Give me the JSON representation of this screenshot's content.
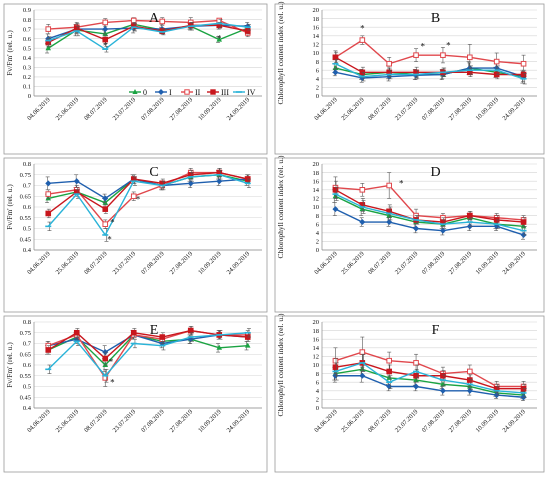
{
  "figure": {
    "bg_color": "#ffffff",
    "frame_color": "#9a9a9a",
    "grid_color": "#d4d4d4",
    "series_colors": [
      "#1aa342",
      "#1f5fae",
      "#e0474c",
      "#c8161d",
      "#29b3d8"
    ],
    "series_names": [
      "0",
      "I",
      "II",
      "III",
      "IV"
    ],
    "shared_dates": [
      "04.06.2019",
      "25.06.2019",
      "08.07.2019",
      "23.07.2019",
      "07.08.2019",
      "27.08.2019",
      "10.09.2019",
      "24.09.2019"
    ]
  },
  "chart_data": [
    {
      "panel": "A",
      "type": "line",
      "letter": "A",
      "ylabel": "Fv/Fm' (rel. u.)",
      "ylim": [
        0,
        0.9
      ],
      "yticks": [
        "0",
        "0.1",
        "0.2",
        "0.3",
        "0.4",
        "0.5",
        "0.6",
        "0.7",
        "0.8",
        "0.9"
      ],
      "grid": true,
      "legend": "bottom",
      "legend_labels": [
        "0",
        "I",
        "II",
        "III",
        "IV"
      ],
      "stars": [
        {
          "x": 2,
          "y": 0.49,
          "text": "*"
        },
        {
          "x": 6,
          "y": 0.57,
          "text": "*"
        }
      ],
      "series": [
        {
          "name": "0",
          "values": [
            0.5,
            0.69,
            0.65,
            0.75,
            0.69,
            0.73,
            0.59,
            0.71
          ],
          "err": [
            0.05,
            0.06,
            0.04,
            0.04,
            0.03,
            0.03,
            0.03,
            0.03
          ]
        },
        {
          "name": "I",
          "values": [
            0.6,
            0.7,
            0.7,
            0.71,
            0.7,
            0.73,
            0.74,
            0.73
          ],
          "err": [
            0.05,
            0.05,
            0.05,
            0.05,
            0.05,
            0.04,
            0.04,
            0.04
          ]
        },
        {
          "name": "II",
          "values": [
            0.7,
            0.72,
            0.77,
            0.79,
            0.78,
            0.77,
            0.79,
            0.66
          ],
          "err": [
            0.05,
            0.05,
            0.04,
            0.03,
            0.04,
            0.05,
            0.02,
            0.04
          ]
        },
        {
          "name": "III",
          "values": [
            0.56,
            0.71,
            0.59,
            0.73,
            0.68,
            0.74,
            0.74,
            0.68
          ],
          "err": [
            0.04,
            0.05,
            0.04,
            0.04,
            0.03,
            0.03,
            0.03,
            0.03
          ]
        },
        {
          "name": "IV",
          "values": [
            0.58,
            0.68,
            0.49,
            0.72,
            0.67,
            0.73,
            0.76,
            0.72
          ],
          "err": [
            0.04,
            0.05,
            0.03,
            0.04,
            0.03,
            0.04,
            0.04,
            0.03
          ]
        }
      ]
    },
    {
      "panel": "B",
      "type": "line",
      "letter": "B",
      "ylabel": "Chlorophyll content index (rel. u.)",
      "ylim": [
        0,
        20
      ],
      "yticks": [
        "0",
        "2",
        "4",
        "6",
        "8",
        "10",
        "12",
        "14",
        "16",
        "18",
        "20"
      ],
      "grid": true,
      "legend": "none",
      "stars": [
        {
          "x": 1,
          "y": 15.0,
          "text": "*"
        },
        {
          "x": 3.25,
          "y": 10.8,
          "text": "*"
        },
        {
          "x": 4.2,
          "y": 11.0,
          "text": "*"
        }
      ],
      "series": [
        {
          "name": "0",
          "values": [
            6.5,
            5.0,
            5.5,
            5.0,
            5.0,
            6.5,
            5.5,
            4.5
          ],
          "err": [
            1.0,
            1.2,
            1.5,
            1.2,
            1.2,
            1.5,
            1.2,
            1.5
          ]
        },
        {
          "name": "I",
          "values": [
            5.5,
            4.2,
            4.5,
            4.8,
            5.0,
            6.5,
            6.5,
            4.5
          ],
          "err": [
            0.8,
            1.0,
            1.0,
            1.0,
            1.0,
            1.2,
            1.0,
            1.2
          ]
        },
        {
          "name": "II",
          "values": [
            9.0,
            13.0,
            7.5,
            9.5,
            9.5,
            9.0,
            8.0,
            7.5
          ],
          "err": [
            1.5,
            1.0,
            1.5,
            1.5,
            1.8,
            3.0,
            2.0,
            2.0
          ]
        },
        {
          "name": "III",
          "values": [
            9.0,
            5.5,
            5.5,
            5.5,
            5.5,
            5.5,
            5.0,
            5.0
          ],
          "err": [
            1.2,
            1.2,
            1.0,
            1.2,
            1.0,
            1.0,
            1.0,
            1.0
          ]
        },
        {
          "name": "IV",
          "values": [
            7.5,
            4.5,
            5.0,
            5.0,
            5.5,
            6.0,
            6.0,
            4.0
          ],
          "err": [
            1.0,
            1.0,
            1.0,
            1.0,
            1.0,
            1.0,
            1.0,
            1.2
          ]
        }
      ]
    },
    {
      "panel": "C",
      "type": "line",
      "letter": "C",
      "ylabel": "Fv/Fm' (rel. u.)",
      "ylim": [
        0.4,
        0.8
      ],
      "yticks": [
        "0.4",
        "0.45",
        "0.5",
        "0.55",
        "0.6",
        "0.65",
        "0.7",
        "0.75",
        "0.8"
      ],
      "grid": true,
      "legend": "none",
      "stars": [
        {
          "x": 2.25,
          "y": 0.515,
          "text": "*"
        },
        {
          "x": 2.15,
          "y": 0.435,
          "text": "*"
        },
        {
          "x": 3.15,
          "y": 0.62,
          "text": "*"
        }
      ],
      "series": [
        {
          "name": "0",
          "values": [
            0.64,
            0.67,
            0.62,
            0.73,
            0.7,
            0.74,
            0.75,
            0.72
          ],
          "err": [
            0.02,
            0.02,
            0.02,
            0.02,
            0.02,
            0.02,
            0.02,
            0.02
          ]
        },
        {
          "name": "I",
          "values": [
            0.71,
            0.72,
            0.64,
            0.73,
            0.7,
            0.71,
            0.72,
            0.73
          ],
          "err": [
            0.03,
            0.03,
            0.02,
            0.02,
            0.02,
            0.02,
            0.02,
            0.02
          ]
        },
        {
          "name": "II",
          "values": [
            0.66,
            0.68,
            0.52,
            0.65,
            0.7,
            0.76,
            0.76,
            0.73
          ],
          "err": [
            0.02,
            0.02,
            0.02,
            0.02,
            0.02,
            0.02,
            0.02,
            0.02
          ]
        },
        {
          "name": "III",
          "values": [
            0.57,
            0.67,
            0.59,
            0.73,
            0.71,
            0.75,
            0.76,
            0.73
          ],
          "err": [
            0.02,
            0.02,
            0.02,
            0.02,
            0.02,
            0.02,
            0.02,
            0.02
          ]
        },
        {
          "name": "IV",
          "values": [
            0.51,
            0.66,
            0.47,
            0.72,
            0.7,
            0.74,
            0.75,
            0.71
          ],
          "err": [
            0.02,
            0.02,
            0.03,
            0.02,
            0.02,
            0.02,
            0.02,
            0.02
          ]
        }
      ]
    },
    {
      "panel": "D",
      "type": "line",
      "letter": "D",
      "ylabel": "Chlorophyll content index (rel. u.)",
      "ylim": [
        0,
        20
      ],
      "yticks": [
        "0",
        "2",
        "4",
        "6",
        "8",
        "10",
        "12",
        "14",
        "16",
        "18",
        "20"
      ],
      "grid": true,
      "legend": "none",
      "stars": [
        {
          "x": 2.45,
          "y": 14.8,
          "text": "*"
        }
      ],
      "series": [
        {
          "name": "0",
          "values": [
            12.5,
            9.5,
            8.0,
            6.5,
            6.0,
            7.5,
            6.0,
            5.5
          ],
          "err": [
            1.5,
            1.5,
            1.5,
            1.2,
            1.0,
            1.0,
            1.0,
            1.0
          ]
        },
        {
          "name": "I",
          "values": [
            9.5,
            6.5,
            6.5,
            5.0,
            4.5,
            5.5,
            5.5,
            3.5
          ],
          "err": [
            1.5,
            1.0,
            1.0,
            1.0,
            1.0,
            1.0,
            1.0,
            1.0
          ]
        },
        {
          "name": "II",
          "values": [
            14.5,
            14.0,
            15.0,
            8.0,
            7.5,
            8.0,
            7.5,
            7.0
          ],
          "err": [
            2.5,
            1.5,
            3.0,
            1.5,
            1.0,
            1.0,
            1.0,
            1.0
          ]
        },
        {
          "name": "III",
          "values": [
            14.0,
            10.5,
            9.0,
            7.0,
            6.5,
            8.0,
            7.0,
            6.5
          ],
          "err": [
            2.0,
            1.5,
            1.5,
            1.0,
            1.0,
            1.0,
            1.0,
            1.0
          ]
        },
        {
          "name": "IV",
          "values": [
            13.0,
            10.0,
            8.5,
            7.0,
            6.0,
            6.5,
            6.0,
            4.5
          ],
          "err": [
            1.5,
            1.5,
            1.5,
            1.0,
            1.0,
            1.0,
            1.0,
            1.0
          ]
        }
      ]
    },
    {
      "panel": "E",
      "type": "line",
      "letter": "E",
      "ylabel": "Fv/Fm' (rel. u.)",
      "ylim": [
        0.4,
        0.8
      ],
      "yticks": [
        "0.4",
        "0.45",
        "0.5",
        "0.55",
        "0.6",
        "0.65",
        "0.7",
        "0.75",
        "0.8"
      ],
      "grid": true,
      "legend": "none",
      "stars": [
        {
          "x": 2.2,
          "y": 0.6,
          "text": "*"
        },
        {
          "x": 2.25,
          "y": 0.505,
          "text": "*"
        }
      ],
      "series": [
        {
          "name": "0",
          "values": [
            0.67,
            0.73,
            0.6,
            0.74,
            0.71,
            0.72,
            0.68,
            0.69
          ],
          "err": [
            0.02,
            0.02,
            0.03,
            0.02,
            0.02,
            0.02,
            0.02,
            0.02
          ]
        },
        {
          "name": "I",
          "values": [
            0.69,
            0.72,
            0.66,
            0.74,
            0.7,
            0.72,
            0.74,
            0.73
          ],
          "err": [
            0.02,
            0.02,
            0.03,
            0.02,
            0.02,
            0.02,
            0.02,
            0.02
          ]
        },
        {
          "name": "II",
          "values": [
            0.69,
            0.74,
            0.54,
            0.74,
            0.72,
            0.76,
            0.74,
            0.74
          ],
          "err": [
            0.02,
            0.02,
            0.04,
            0.02,
            0.02,
            0.02,
            0.02,
            0.02
          ]
        },
        {
          "name": "III",
          "values": [
            0.67,
            0.75,
            0.63,
            0.75,
            0.73,
            0.76,
            0.74,
            0.73
          ],
          "err": [
            0.02,
            0.02,
            0.03,
            0.02,
            0.02,
            0.02,
            0.02,
            0.02
          ]
        },
        {
          "name": "IV",
          "values": [
            0.58,
            0.71,
            0.55,
            0.7,
            0.69,
            0.73,
            0.74,
            0.75
          ],
          "err": [
            0.02,
            0.02,
            0.03,
            0.02,
            0.02,
            0.02,
            0.02,
            0.02
          ]
        }
      ]
    },
    {
      "panel": "F",
      "type": "line",
      "letter": "F",
      "ylabel": "Chlorophyll content index (rel. u.)",
      "ylim": [
        0,
        20
      ],
      "yticks": [
        "0",
        "2",
        "4",
        "6",
        "8",
        "10",
        "12",
        "14",
        "16",
        "18",
        "20"
      ],
      "grid": true,
      "legend": "none",
      "stars": [],
      "series": [
        {
          "name": "0",
          "values": [
            8.0,
            9.0,
            7.0,
            6.5,
            5.5,
            5.0,
            3.5,
            3.0
          ],
          "err": [
            1.5,
            1.5,
            1.5,
            1.2,
            1.0,
            1.0,
            0.8,
            0.8
          ]
        },
        {
          "name": "I",
          "values": [
            7.5,
            7.5,
            5.0,
            5.0,
            4.0,
            4.0,
            3.0,
            2.5
          ],
          "err": [
            1.5,
            1.5,
            1.0,
            1.0,
            1.0,
            1.0,
            0.8,
            0.8
          ]
        },
        {
          "name": "II",
          "values": [
            11.0,
            13.0,
            11.0,
            10.5,
            8.0,
            8.5,
            5.0,
            5.0
          ],
          "err": [
            3.0,
            3.5,
            2.0,
            2.0,
            1.5,
            1.5,
            1.2,
            1.2
          ]
        },
        {
          "name": "III",
          "values": [
            9.5,
            10.5,
            8.5,
            7.5,
            7.5,
            6.5,
            4.5,
            4.5
          ],
          "err": [
            2.0,
            2.0,
            1.5,
            1.5,
            1.2,
            1.2,
            1.0,
            1.0
          ]
        },
        {
          "name": "IV",
          "values": [
            8.5,
            10.5,
            6.0,
            8.5,
            6.5,
            5.5,
            4.0,
            3.5
          ],
          "err": [
            2.0,
            2.0,
            1.5,
            1.5,
            1.2,
            1.2,
            1.0,
            1.0
          ]
        }
      ]
    }
  ]
}
